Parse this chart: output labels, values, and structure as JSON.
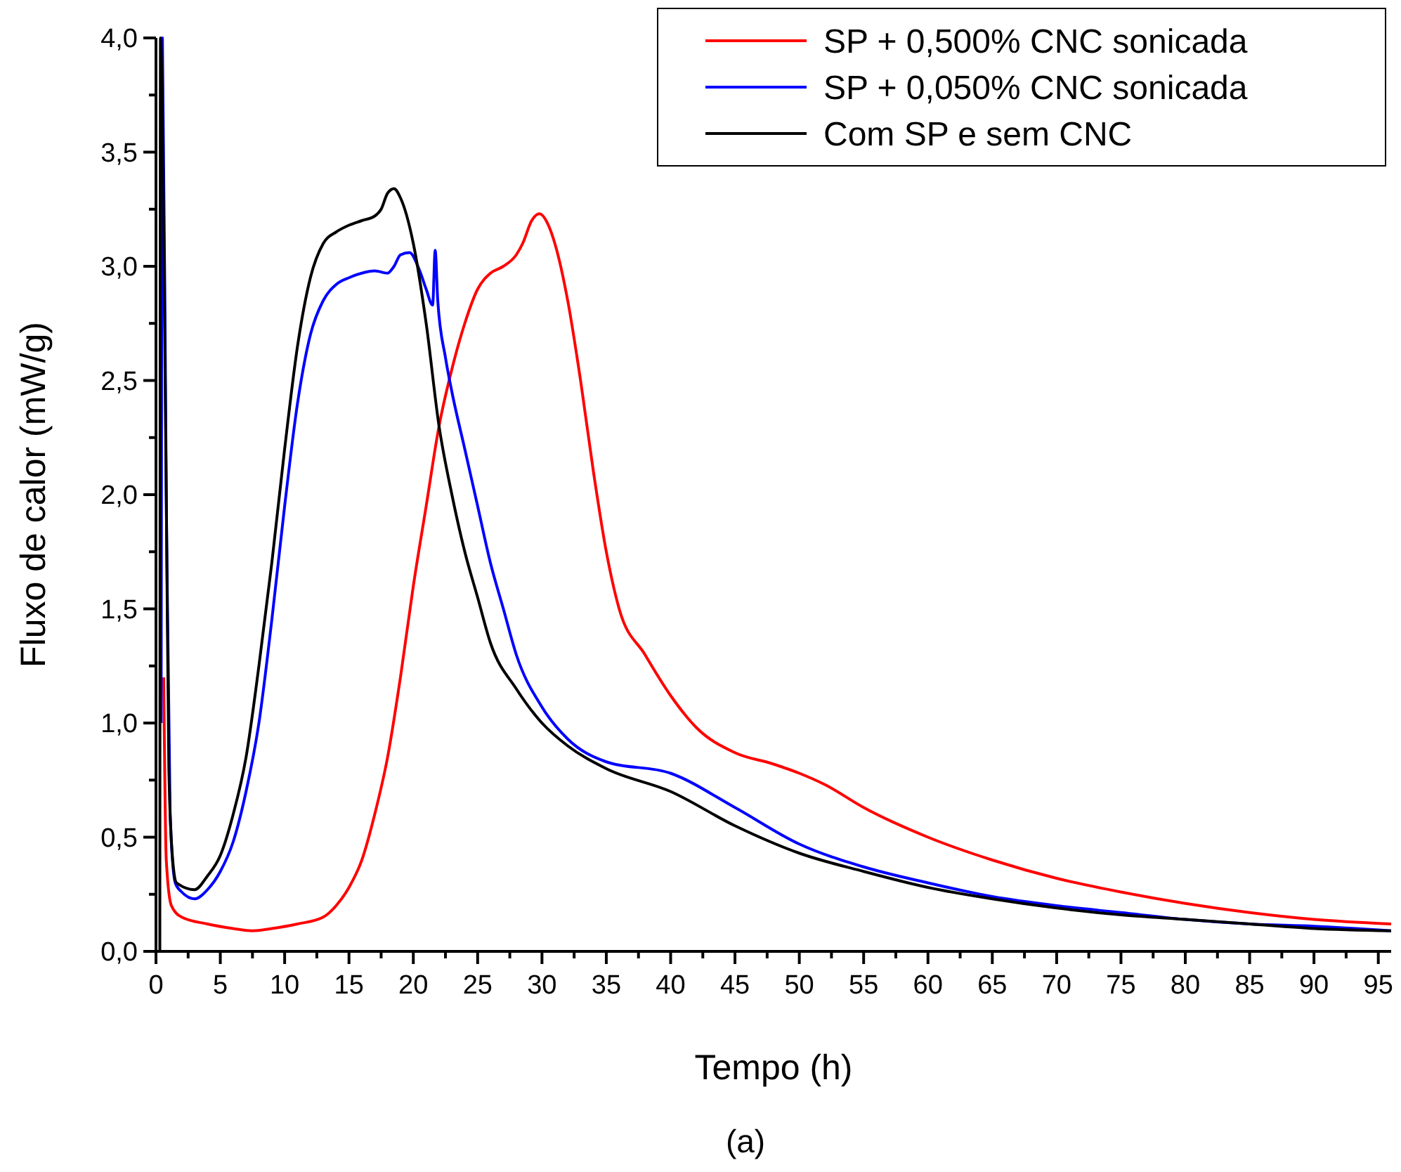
{
  "chart_data": {
    "type": "line",
    "xlabel": "Tempo (h)",
    "ylabel": "Fluxo de calor (mW/g)",
    "annotations": [
      "(a)"
    ],
    "legend": "top right",
    "grid": false,
    "line_style": "solid",
    "xlim": [
      0,
      96
    ],
    "ylim": [
      0,
      4
    ],
    "xticks": [
      0,
      {
        "value": 2.5,
        "label": null
      },
      5,
      {
        "value": 7.5,
        "label": null
      },
      10,
      {
        "value": 12.5,
        "label": null
      },
      15,
      {
        "value": 17.5,
        "label": null
      },
      20,
      {
        "value": 22.5,
        "label": null
      },
      25,
      {
        "value": 27.5,
        "label": null
      },
      30,
      {
        "value": 32.5,
        "label": null
      },
      35,
      {
        "value": 37.5,
        "label": null
      },
      40,
      {
        "value": 42.5,
        "label": null
      },
      45,
      {
        "value": 47.5,
        "label": null
      },
      50,
      {
        "value": 52.5,
        "label": null
      },
      55,
      {
        "value": 57.5,
        "label": null
      },
      60,
      {
        "value": 62.5,
        "label": null
      },
      65,
      {
        "value": 67.5,
        "label": null
      },
      70,
      {
        "value": 72.5,
        "label": null
      },
      75,
      {
        "value": 77.5,
        "label": null
      },
      80,
      {
        "value": 82.5,
        "label": null
      },
      85,
      {
        "value": 87.5,
        "label": null
      },
      90,
      {
        "value": 92.5,
        "label": null
      },
      95
    ],
    "yticks": [
      {
        "value": 0,
        "label": "0,0"
      },
      {
        "value": 0.25,
        "label": null
      },
      {
        "value": 0.5,
        "label": "0,5"
      },
      {
        "value": 0.75,
        "label": null
      },
      {
        "value": 1,
        "label": "1,0"
      },
      {
        "value": 1.25,
        "label": null
      },
      {
        "value": 1.5,
        "label": "1,5"
      },
      {
        "value": 1.75,
        "label": null
      },
      {
        "value": 2,
        "label": "2,0"
      },
      {
        "value": 2.25,
        "label": null
      },
      {
        "value": 2.5,
        "label": "2,5"
      },
      {
        "value": 2.75,
        "label": null
      },
      {
        "value": 3,
        "label": "3,0"
      },
      {
        "value": 3.25,
        "label": null
      },
      {
        "value": 3.5,
        "label": "3,5"
      },
      {
        "value": 3.75,
        "label": null
      },
      {
        "value": 4,
        "label": "4,0"
      }
    ],
    "series": [
      {
        "name": "SP + 0,500% CNC sonicada",
        "color": "#ff0000",
        "x": [
          0.6,
          0.8,
          1.2,
          2,
          4,
          6,
          7.5,
          9,
          11,
          13,
          14,
          15,
          16,
          17,
          18,
          19,
          20,
          21,
          22,
          23,
          24,
          25,
          26,
          27,
          28,
          28.5,
          29.2,
          29.8,
          30.5,
          31,
          32,
          33,
          34,
          35,
          36,
          38,
          40,
          42,
          45,
          48,
          50,
          52,
          55,
          60,
          65,
          70,
          75,
          80,
          85,
          90,
          96
        ],
        "values": [
          1.2,
          0.4,
          0.2,
          0.15,
          0.12,
          0.1,
          0.09,
          0.1,
          0.12,
          0.15,
          0.2,
          0.28,
          0.4,
          0.6,
          0.85,
          1.2,
          1.6,
          1.95,
          2.3,
          2.55,
          2.75,
          2.9,
          2.97,
          3.0,
          3.05,
          3.1,
          3.2,
          3.23,
          3.18,
          3.1,
          2.85,
          2.5,
          2.1,
          1.75,
          1.5,
          1.3,
          1.12,
          0.98,
          0.87,
          0.82,
          0.78,
          0.73,
          0.63,
          0.5,
          0.4,
          0.32,
          0.26,
          0.21,
          0.17,
          0.14,
          0.12
        ]
      },
      {
        "name": "SP + 0,050% CNC sonicada",
        "color": "#0000ff",
        "x": [
          0.4,
          0.5,
          0.8,
          1.1,
          1.5,
          2,
          3,
          4,
          5,
          6,
          7,
          8,
          9,
          10,
          11,
          12,
          13,
          14,
          15,
          16,
          17,
          18,
          18.5,
          19,
          19.7,
          20.5,
          21,
          21.5,
          21.7,
          21.9,
          22.5,
          23,
          24,
          25,
          26,
          27,
          28,
          30,
          32,
          35,
          40,
          45,
          50,
          55,
          60,
          65,
          70,
          75,
          80,
          85,
          90,
          96
        ],
        "values": [
          1.0,
          4.0,
          2.0,
          0.6,
          0.3,
          0.26,
          0.23,
          0.27,
          0.35,
          0.48,
          0.7,
          1.0,
          1.45,
          1.95,
          2.4,
          2.7,
          2.85,
          2.92,
          2.95,
          2.97,
          2.98,
          2.97,
          3.0,
          3.05,
          3.06,
          2.98,
          2.9,
          2.83,
          3.07,
          2.85,
          2.6,
          2.45,
          2.2,
          1.95,
          1.7,
          1.5,
          1.3,
          1.07,
          0.93,
          0.83,
          0.78,
          0.63,
          0.47,
          0.37,
          0.3,
          0.24,
          0.2,
          0.17,
          0.14,
          0.12,
          0.11,
          0.09
        ]
      },
      {
        "name": "Com SP e sem CNC",
        "color": "#000000",
        "x": [
          0.3,
          0.35,
          0.8,
          1.0,
          1.3,
          1.6,
          3,
          4,
          5,
          6,
          7,
          8,
          9,
          10,
          11,
          12,
          13,
          14,
          15,
          16,
          17,
          17.5,
          18,
          18.5,
          19,
          20,
          21,
          22,
          23,
          24,
          25,
          26,
          28,
          30,
          32,
          35,
          40,
          45,
          50,
          55,
          60,
          65,
          70,
          75,
          80,
          85,
          90,
          96
        ],
        "values": [
          0,
          4.0,
          2.0,
          0.8,
          0.4,
          0.3,
          0.27,
          0.33,
          0.42,
          0.6,
          0.85,
          1.25,
          1.7,
          2.2,
          2.65,
          2.95,
          3.1,
          3.15,
          3.18,
          3.2,
          3.22,
          3.25,
          3.32,
          3.34,
          3.3,
          3.1,
          2.75,
          2.3,
          2.0,
          1.75,
          1.55,
          1.35,
          1.15,
          1.0,
          0.9,
          0.8,
          0.7,
          0.55,
          0.43,
          0.35,
          0.28,
          0.23,
          0.19,
          0.16,
          0.14,
          0.12,
          0.1,
          0.09
        ]
      }
    ]
  }
}
